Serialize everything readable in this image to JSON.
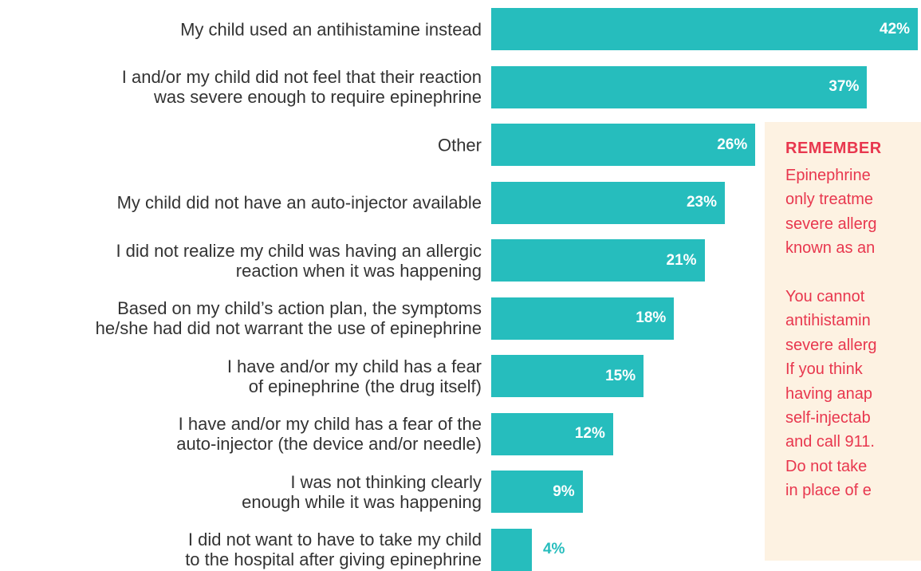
{
  "colors": {
    "bar": "#26bdbd",
    "label": "#333333",
    "callout_text": "#e8374e",
    "callout_bg": "#fdf2e2"
  },
  "chart_data": {
    "type": "bar",
    "orientation": "horizontal",
    "categories": [
      "My child used an antihistamine instead",
      "I and/or my child did not feel that their reaction\nwas severe enough to require epinephrine",
      "Other",
      "My child did not have an auto-injector available",
      "I did not realize my child was having an allergic\nreaction when it was happening",
      "Based on my child’s action plan, the symptoms\nhe/she had did not warrant the use of epinephrine",
      "I have and/or my child has a fear\nof epinephrine (the drug itself)",
      "I have and/or my child has a fear of the\nauto-injector (the device and/or needle)",
      "I was not thinking clearly\nenough while it was happening",
      "I did not want to have to take my child\nto the hospital after giving epinephrine"
    ],
    "values": [
      42,
      37,
      26,
      23,
      21,
      18,
      15,
      12,
      9,
      4
    ],
    "value_labels": [
      "42%",
      "37%",
      "26%",
      "23%",
      "21%",
      "18%",
      "15%",
      "12%",
      "9%",
      "4%"
    ],
    "unit": "%",
    "grid": false,
    "legend": "none"
  },
  "callout": {
    "title": "REMEMBER",
    "lines": [
      "Epinephrine",
      "only treatme",
      "severe allerg",
      "known as an",
      "",
      "You cannot",
      "antihistamin",
      "severe allerg",
      "If you think",
      "having anap",
      "self-injectab",
      "and call 911.",
      "Do not take",
      "in place of e"
    ]
  }
}
